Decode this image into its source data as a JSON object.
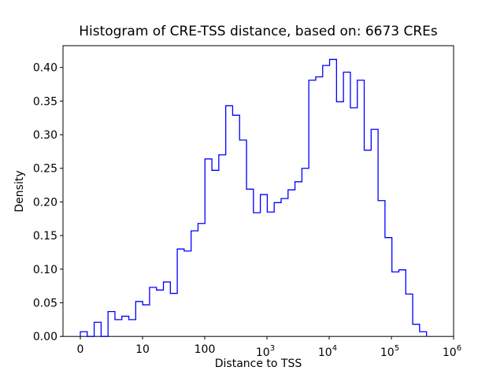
{
  "figure": {
    "background": "#ffffff",
    "axis_color": "#000000",
    "line_color": "#0000ff"
  },
  "chart_data": {
    "type": "histogram",
    "histtype": "step",
    "title": "Histogram of CRE-TSS distance, based on: 6673 CREs",
    "xlabel": "Distance to TSS",
    "ylabel": "Density",
    "n_samples_in_title": "6673",
    "x_scale": "symlog (0 tick, then one decade per tick up to 10^6)",
    "grid": "off",
    "legend": "none",
    "x_ticks": [
      {
        "label": "0",
        "exp": null,
        "u": 0
      },
      {
        "label": "10",
        "exp": null,
        "u": 1
      },
      {
        "label": "100",
        "exp": null,
        "u": 2
      },
      {
        "label": "10",
        "exp": "3",
        "u": 3
      },
      {
        "label": "10",
        "exp": "4",
        "u": 4
      },
      {
        "label": "10",
        "exp": "5",
        "u": 5
      },
      {
        "label": "10",
        "exp": "6",
        "u": 6
      }
    ],
    "y_ticks": [
      {
        "label": "0.00",
        "value": 0.0
      },
      {
        "label": "0.05",
        "value": 0.05
      },
      {
        "label": "0.10",
        "value": 0.1
      },
      {
        "label": "0.15",
        "value": 0.15
      },
      {
        "label": "0.20",
        "value": 0.2
      },
      {
        "label": "0.25",
        "value": 0.25
      },
      {
        "label": "0.30",
        "value": 0.3
      },
      {
        "label": "0.35",
        "value": 0.35
      },
      {
        "label": "0.40",
        "value": 0.4
      }
    ],
    "xlim_u": [
      -0.2785,
      6.0
    ],
    "ylim": [
      0,
      0.4324
    ],
    "bins": {
      "comment": "u = decades along the symlog axis measured from the 0 tick; 50 equal-width bins",
      "start_u": 0.0,
      "width_u": 0.1113,
      "densities": [
        0.007,
        0.0,
        0.021,
        0.0,
        0.037,
        0.025,
        0.03,
        0.025,
        0.052,
        0.047,
        0.073,
        0.069,
        0.081,
        0.064,
        0.13,
        0.127,
        0.157,
        0.168,
        0.264,
        0.247,
        0.27,
        0.343,
        0.329,
        0.292,
        0.219,
        0.184,
        0.211,
        0.185,
        0.199,
        0.205,
        0.218,
        0.23,
        0.25,
        0.381,
        0.386,
        0.403,
        0.412,
        0.349,
        0.393,
        0.34,
        0.381,
        0.277,
        0.308,
        0.202,
        0.147,
        0.096,
        0.099,
        0.063,
        0.018,
        0.007
      ]
    }
  }
}
